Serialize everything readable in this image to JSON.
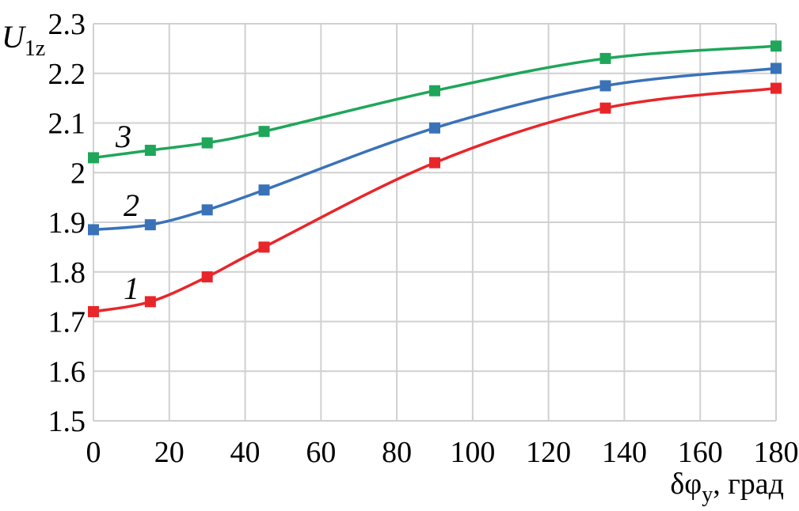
{
  "chart_data": {
    "type": "line",
    "ylabel": {
      "main": "U",
      "sub": "1z"
    },
    "xlabel": {
      "main": "δφ",
      "sub": "y",
      "suffix": ", град"
    },
    "xlim": [
      0,
      180
    ],
    "ylim": [
      1.5,
      2.3
    ],
    "x_ticks": [
      0,
      20,
      40,
      60,
      80,
      100,
      120,
      140,
      160,
      180
    ],
    "x_tick_labels": [
      "0",
      "20",
      "40",
      "60",
      "80",
      "100",
      "120",
      "140",
      "160",
      "180"
    ],
    "y_ticks": [
      1.5,
      1.6,
      1.7,
      1.8,
      1.9,
      2.0,
      2.1,
      2.2,
      2.3
    ],
    "y_tick_labels": [
      "1.5",
      "1.6",
      "1.7",
      "1.8",
      "1.9",
      "2",
      "2.1",
      "2.2",
      "2.3"
    ],
    "grid": true,
    "x": [
      0,
      15,
      30,
      45,
      90,
      135,
      180
    ],
    "series": [
      {
        "label": "1",
        "color": "#e8262a",
        "values": [
          1.72,
          1.74,
          1.79,
          1.85,
          2.02,
          2.13,
          2.17
        ]
      },
      {
        "label": "2",
        "color": "#3a72b8",
        "values": [
          1.885,
          1.895,
          1.925,
          1.965,
          2.09,
          2.175,
          2.21
        ]
      },
      {
        "label": "3",
        "color": "#1fa65a",
        "values": [
          2.03,
          2.045,
          2.06,
          2.083,
          2.165,
          2.23,
          2.255
        ]
      }
    ]
  }
}
